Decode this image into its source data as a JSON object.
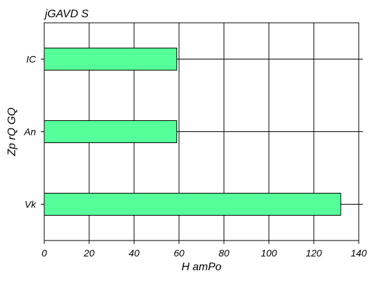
{
  "chart_data": {
    "type": "bar",
    "orientation": "horizontal",
    "title": "jGAVD S",
    "xlabel": "H amPo",
    "ylabel": "Zp rQ GQ",
    "categories": [
      "Vk",
      "An",
      "IC"
    ],
    "values": [
      132,
      59,
      59
    ],
    "xlim": [
      0,
      140
    ],
    "xticks": [
      0,
      20,
      40,
      60,
      80,
      100,
      120,
      140
    ],
    "grid": true,
    "bar_color": "#55ff99",
    "edge_color": "#000000"
  }
}
